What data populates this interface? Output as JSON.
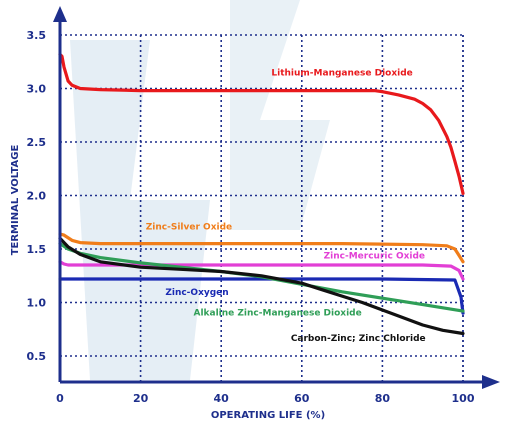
{
  "chart_data": {
    "type": "line",
    "title": "",
    "xlabel": "OPERATING LIFE (%)",
    "ylabel": "TERMINAL VOLTAGE",
    "xlim": [
      0,
      100
    ],
    "ylim": [
      0.3,
      3.5
    ],
    "xticks": [
      "0",
      "20",
      "40",
      "60",
      "80",
      "100"
    ],
    "yticks": [
      "0.5",
      "1.0",
      "1.5",
      "2.0",
      "2.5",
      "3.0",
      "3.5"
    ],
    "grid": true,
    "colors": {
      "axis": "#1e2f8c",
      "grid": "#1e2f8c",
      "watermark": "#cfe0ec"
    },
    "series": [
      {
        "name": "Lithium-Manganese Dioxide",
        "color": "#e8191c",
        "x": [
          0,
          0.5,
          1,
          2,
          3,
          5,
          10,
          20,
          40,
          60,
          70,
          75,
          78,
          80,
          84,
          88,
          90,
          92,
          94,
          96,
          97,
          98,
          99,
          100
        ],
        "y": [
          3.32,
          3.3,
          3.2,
          3.07,
          3.03,
          3.0,
          2.99,
          2.98,
          2.98,
          2.98,
          2.98,
          2.98,
          2.98,
          2.97,
          2.94,
          2.9,
          2.86,
          2.8,
          2.7,
          2.55,
          2.45,
          2.32,
          2.18,
          2.02
        ]
      },
      {
        "name": "Zinc-Silver Oxide",
        "color": "#f07d1a",
        "x": [
          0,
          1,
          3,
          5,
          10,
          30,
          50,
          70,
          90,
          96,
          98,
          99,
          100
        ],
        "y": [
          1.64,
          1.63,
          1.58,
          1.56,
          1.55,
          1.55,
          1.55,
          1.55,
          1.54,
          1.53,
          1.5,
          1.44,
          1.38
        ]
      },
      {
        "name": "Zinc-Mercuric Oxide",
        "color": "#e23fd5",
        "x": [
          0,
          1,
          2,
          5,
          10,
          30,
          50,
          70,
          90,
          97,
          99,
          100
        ],
        "y": [
          1.38,
          1.36,
          1.35,
          1.35,
          1.35,
          1.35,
          1.35,
          1.35,
          1.35,
          1.34,
          1.3,
          1.22
        ]
      },
      {
        "name": "Zinc-Oxygen",
        "color": "#1a2ab3",
        "x": [
          0,
          1,
          2,
          5,
          20,
          40,
          60,
          80,
          98,
          99.5,
          100
        ],
        "y": [
          1.22,
          1.22,
          1.22,
          1.22,
          1.22,
          1.22,
          1.22,
          1.22,
          1.21,
          1.05,
          0.9
        ]
      },
      {
        "name": "Alkaline Zinc-Manganese Dioxide",
        "color": "#2f9e57",
        "x": [
          0,
          2,
          5,
          10,
          20,
          30,
          40,
          50,
          60,
          70,
          80,
          90,
          100
        ],
        "y": [
          1.55,
          1.5,
          1.46,
          1.42,
          1.37,
          1.33,
          1.29,
          1.24,
          1.17,
          1.1,
          1.04,
          0.98,
          0.92
        ]
      },
      {
        "name": "Carbon-Zinc; Zinc Chloride",
        "color": "#111111",
        "x": [
          0,
          2,
          5,
          10,
          20,
          30,
          40,
          50,
          60,
          65,
          70,
          75,
          80,
          85,
          90,
          95,
          100
        ],
        "y": [
          1.6,
          1.52,
          1.45,
          1.38,
          1.33,
          1.31,
          1.29,
          1.25,
          1.18,
          1.12,
          1.06,
          1.0,
          0.93,
          0.86,
          0.79,
          0.74,
          0.71
        ]
      }
    ],
    "annotations": [
      {
        "text": "Lithium-Manganese Dioxide",
        "series": 0,
        "x": 70,
        "y": 3.12
      },
      {
        "text": "Zinc-Silver Oxide",
        "series": 1,
        "x": 32,
        "y": 1.68
      },
      {
        "text": "Zinc-Mercuric Oxide",
        "series": 2,
        "x": 78,
        "y": 1.41
      },
      {
        "text": "Zinc-Oxygen",
        "series": 3,
        "x": 34,
        "y": 1.07
      },
      {
        "text": "Alkaline Zinc-Manganese Dioxide",
        "series": 4,
        "x": 54,
        "y": 0.88
      },
      {
        "text": "Carbon-Zinc; Zinc Chloride",
        "series": 5,
        "x": 74,
        "y": 0.64
      }
    ]
  }
}
